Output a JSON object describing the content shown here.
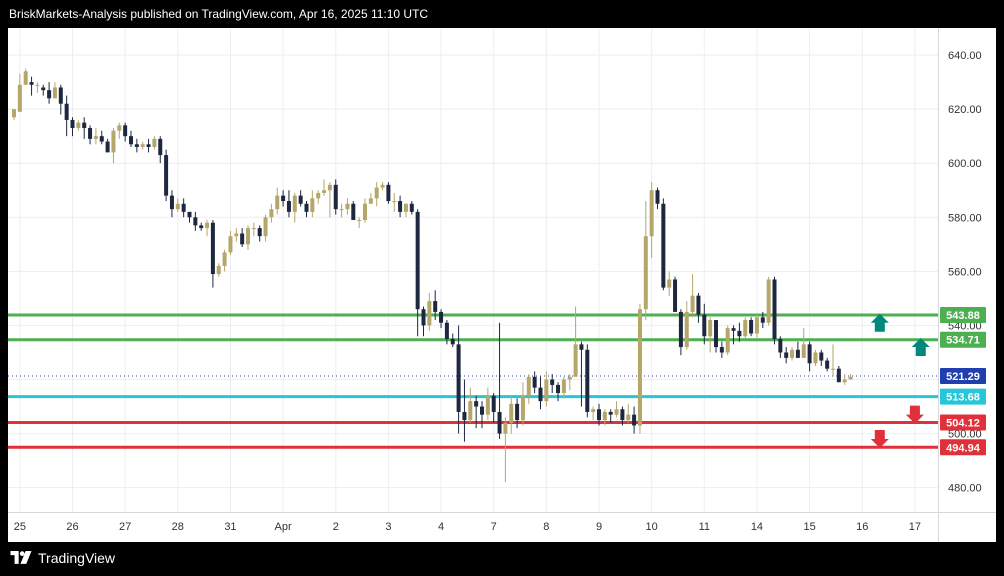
{
  "header": {
    "text": "BriskMarkets-Analysis published on TradingView.com, Apr 16, 2025 11:10 UTC"
  },
  "footer": {
    "brand": "TradingView"
  },
  "colors": {
    "bull": "#b5a66a",
    "bear": "#1e2740",
    "green": "#4caf50",
    "teal": "#00897b",
    "red": "#e0303a",
    "cyan": "#26c6da",
    "blue": "#1f3fae",
    "grid": "#eceef2"
  },
  "chart_data": {
    "type": "candlestick",
    "ylim": [
      471,
      650
    ],
    "y_ticks": [
      480,
      500,
      520,
      540,
      560,
      580,
      600,
      620,
      640
    ],
    "x_labels": [
      {
        "label": "25",
        "i": 1
      },
      {
        "label": "26",
        "i": 10
      },
      {
        "label": "27",
        "i": 19
      },
      {
        "label": "28",
        "i": 28
      },
      {
        "label": "31",
        "i": 37
      },
      {
        "label": "Apr",
        "i": 46
      },
      {
        "label": "2",
        "i": 55
      },
      {
        "label": "3",
        "i": 64
      },
      {
        "label": "4",
        "i": 73
      },
      {
        "label": "7",
        "i": 82
      },
      {
        "label": "8",
        "i": 91
      },
      {
        "label": "9",
        "i": 100
      },
      {
        "label": "10",
        "i": 109
      },
      {
        "label": "11",
        "i": 118
      },
      {
        "label": "14",
        "i": 127
      },
      {
        "label": "15",
        "i": 136
      },
      {
        "label": "16",
        "i": 145
      },
      {
        "label": "17",
        "i": 154
      }
    ],
    "levels": [
      {
        "value": 543.88,
        "label": "543.88",
        "color": "green"
      },
      {
        "value": 534.71,
        "label": "534.71",
        "color": "green"
      },
      {
        "value": 513.68,
        "label": "513.68",
        "color": "cyan"
      },
      {
        "value": 504.12,
        "label": "504.12",
        "color": "red"
      },
      {
        "value": 494.94,
        "label": "494.94",
        "color": "red"
      }
    ],
    "current_price": {
      "value": 521.29,
      "label": "521.29"
    },
    "arrows": [
      {
        "dir": "up",
        "i": 148,
        "value": 541,
        "color": "teal"
      },
      {
        "dir": "up",
        "i": 155,
        "value": 532,
        "color": "teal"
      },
      {
        "dir": "down",
        "i": 154,
        "value": 507,
        "color": "red"
      },
      {
        "dir": "down",
        "i": 148,
        "value": 498,
        "color": "red"
      }
    ],
    "candles": [
      [
        617,
        620,
        619,
        616
      ],
      [
        619,
        629,
        633,
        629
      ],
      [
        629,
        634,
        635,
        630
      ],
      [
        630,
        629,
        632,
        625
      ],
      [
        629,
        629,
        630,
        626
      ],
      [
        628,
        627,
        629,
        625
      ],
      [
        627,
        624,
        630,
        622
      ],
      [
        624,
        628,
        630,
        625
      ],
      [
        628,
        622,
        629,
        618
      ],
      [
        622,
        616,
        625,
        610
      ],
      [
        616,
        613,
        617,
        610
      ],
      [
        613,
        615,
        616,
        612
      ],
      [
        615,
        613,
        617,
        609
      ],
      [
        613,
        609,
        614,
        607
      ],
      [
        609,
        610,
        613,
        607
      ],
      [
        610,
        608,
        612,
        607
      ],
      [
        608,
        604,
        609,
        606
      ],
      [
        604,
        612,
        613,
        600
      ],
      [
        612,
        614,
        615,
        609
      ],
      [
        614,
        610,
        615,
        608
      ],
      [
        610,
        607,
        612,
        606
      ],
      [
        607,
        606,
        609,
        604
      ],
      [
        606,
        607,
        608,
        605
      ],
      [
        607,
        606,
        609,
        604
      ],
      [
        606,
        609,
        610,
        605
      ],
      [
        609,
        603,
        610,
        600
      ],
      [
        603,
        588,
        605,
        586
      ],
      [
        588,
        583,
        590,
        580
      ],
      [
        583,
        585,
        587,
        582
      ],
      [
        585,
        582,
        587,
        580
      ],
      [
        582,
        580,
        582,
        578
      ],
      [
        580,
        577,
        582,
        575
      ],
      [
        577,
        576,
        578,
        575
      ],
      [
        576,
        578,
        579,
        573
      ],
      [
        578,
        559,
        579,
        554
      ],
      [
        559,
        562,
        563,
        558
      ],
      [
        562,
        567,
        568,
        560
      ],
      [
        567,
        573,
        575,
        566
      ],
      [
        573,
        574,
        576,
        571
      ],
      [
        574,
        570,
        576,
        569
      ],
      [
        570,
        576,
        577,
        568
      ],
      [
        576,
        576,
        578,
        573
      ],
      [
        576,
        573,
        577,
        571
      ],
      [
        573,
        580,
        581,
        571
      ],
      [
        580,
        583,
        585,
        578
      ],
      [
        583,
        588,
        591,
        581
      ],
      [
        588,
        586,
        590,
        584
      ],
      [
        586,
        582,
        590,
        580
      ],
      [
        582,
        588,
        589,
        578
      ],
      [
        588,
        585,
        590,
        584
      ],
      [
        585,
        582,
        586,
        580
      ],
      [
        582,
        587,
        590,
        580
      ],
      [
        587,
        589,
        590,
        585
      ],
      [
        589,
        590,
        594,
        588
      ],
      [
        590,
        592,
        593,
        580
      ],
      [
        592,
        583,
        594,
        581
      ],
      [
        583,
        583,
        585,
        580
      ],
      [
        583,
        585,
        587,
        581
      ],
      [
        585,
        579,
        586,
        579
      ],
      [
        579,
        579,
        580,
        576
      ],
      [
        579,
        585,
        587,
        578
      ],
      [
        585,
        587,
        589,
        585
      ],
      [
        587,
        591,
        593,
        584
      ],
      [
        591,
        592,
        593,
        590
      ],
      [
        592,
        586,
        593,
        585
      ],
      [
        586,
        586,
        589,
        582
      ],
      [
        586,
        582,
        588,
        580
      ],
      [
        582,
        585,
        585,
        580
      ],
      [
        585,
        582,
        586,
        581
      ],
      [
        582,
        546,
        583,
        536
      ],
      [
        546,
        540,
        547,
        536
      ],
      [
        540,
        549,
        552,
        538
      ],
      [
        549,
        545,
        553,
        542
      ],
      [
        545,
        541,
        546,
        539
      ],
      [
        541,
        535,
        542,
        533
      ],
      [
        535,
        533,
        537,
        532
      ],
      [
        533,
        508,
        540,
        500
      ],
      [
        508,
        505,
        520,
        497
      ],
      [
        505,
        512,
        517,
        504
      ],
      [
        512,
        510,
        514,
        502
      ],
      [
        510,
        507,
        512,
        502
      ],
      [
        507,
        514,
        517,
        505
      ],
      [
        514,
        508,
        515,
        504
      ],
      [
        508,
        500,
        541,
        498
      ],
      [
        500,
        504,
        506,
        482
      ],
      [
        504,
        511,
        514,
        500
      ],
      [
        511,
        505,
        513,
        502
      ],
      [
        505,
        514,
        519,
        503
      ],
      [
        514,
        521,
        522,
        511
      ],
      [
        521,
        517,
        523,
        515
      ],
      [
        517,
        512,
        521,
        509
      ],
      [
        512,
        520,
        523,
        510
      ],
      [
        520,
        518,
        522,
        515
      ],
      [
        518,
        515,
        519,
        512
      ],
      [
        515,
        520,
        521,
        513
      ],
      [
        520,
        521,
        522,
        516
      ],
      [
        521,
        533,
        547,
        531
      ],
      [
        533,
        531,
        534,
        510
      ],
      [
        531,
        508,
        533,
        506
      ],
      [
        508,
        509,
        510,
        505
      ],
      [
        509,
        505,
        511,
        503
      ],
      [
        505,
        508,
        509,
        503
      ],
      [
        508,
        507,
        509,
        504
      ],
      [
        507,
        509,
        512,
        506
      ],
      [
        509,
        505,
        510,
        503
      ],
      [
        505,
        507,
        511,
        504
      ],
      [
        507,
        503,
        510,
        500
      ],
      [
        503,
        546,
        548,
        500
      ],
      [
        546,
        573,
        586,
        542
      ],
      [
        573,
        590,
        593,
        565
      ],
      [
        590,
        585,
        591,
        583
      ],
      [
        585,
        554,
        587,
        553
      ],
      [
        554,
        557,
        560,
        551
      ],
      [
        557,
        545,
        558,
        545
      ],
      [
        545,
        532,
        546,
        529
      ],
      [
        532,
        545,
        549,
        531
      ],
      [
        545,
        551,
        559,
        543
      ],
      [
        551,
        544,
        552,
        541
      ],
      [
        544,
        536,
        548,
        533
      ],
      [
        536,
        542,
        543,
        530
      ],
      [
        542,
        532,
        535,
        530
      ],
      [
        532,
        530,
        534,
        528
      ],
      [
        530,
        539,
        540,
        529
      ],
      [
        539,
        538,
        540,
        533
      ],
      [
        538,
        536,
        541,
        534
      ],
      [
        536,
        542,
        543,
        535
      ],
      [
        542,
        537,
        543,
        536
      ],
      [
        537,
        543,
        544,
        535
      ],
      [
        543,
        541,
        545,
        539
      ],
      [
        541,
        557,
        558,
        540
      ],
      [
        557,
        535,
        558,
        533
      ],
      [
        535,
        530,
        536,
        528
      ],
      [
        530,
        528,
        532,
        526
      ],
      [
        528,
        531,
        532,
        527
      ],
      [
        531,
        528,
        534,
        528
      ],
      [
        528,
        533,
        539,
        530
      ],
      [
        533,
        526,
        534,
        523
      ],
      [
        526,
        530,
        531,
        525
      ],
      [
        530,
        527,
        531,
        525
      ],
      [
        527,
        524,
        528,
        523
      ],
      [
        524,
        524,
        533,
        521
      ],
      [
        524,
        519,
        525,
        519
      ],
      [
        519,
        520,
        522,
        518
      ],
      [
        520,
        521,
        522,
        520
      ]
    ]
  }
}
